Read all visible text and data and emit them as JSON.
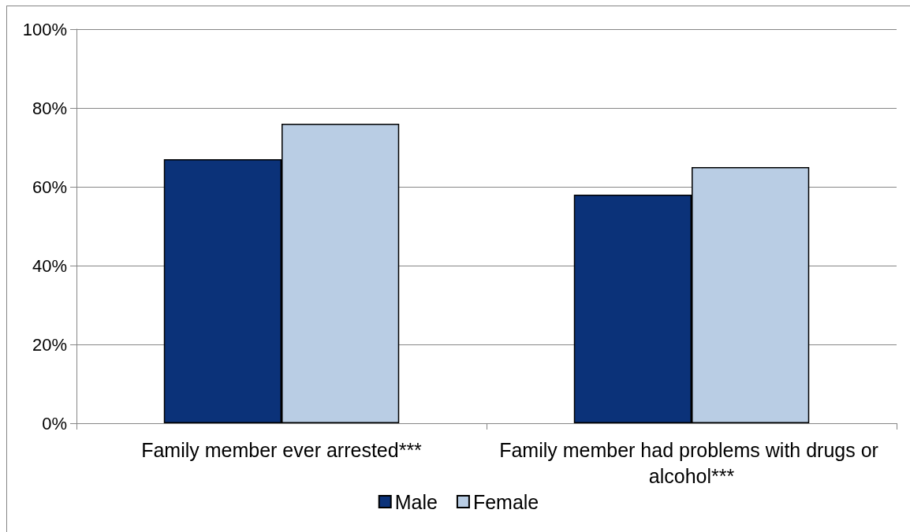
{
  "chart_data": {
    "type": "bar",
    "categories": [
      "Family member ever arrested***",
      "Family member had problems with drugs or alcohol***"
    ],
    "series": [
      {
        "name": "Male",
        "color": "#0b3279",
        "values": [
          67,
          58
        ]
      },
      {
        "name": "Female",
        "color": "#b9cde4",
        "values": [
          76,
          65
        ]
      }
    ],
    "ylim": [
      0,
      100
    ],
    "yticks": [
      {
        "value": 0,
        "label": "0%"
      },
      {
        "value": 20,
        "label": "20%"
      },
      {
        "value": 40,
        "label": "40%"
      },
      {
        "value": 60,
        "label": "60%"
      },
      {
        "value": 80,
        "label": "80%"
      },
      {
        "value": 100,
        "label": "100%"
      }
    ],
    "grid": "y",
    "legend": "bottom"
  }
}
